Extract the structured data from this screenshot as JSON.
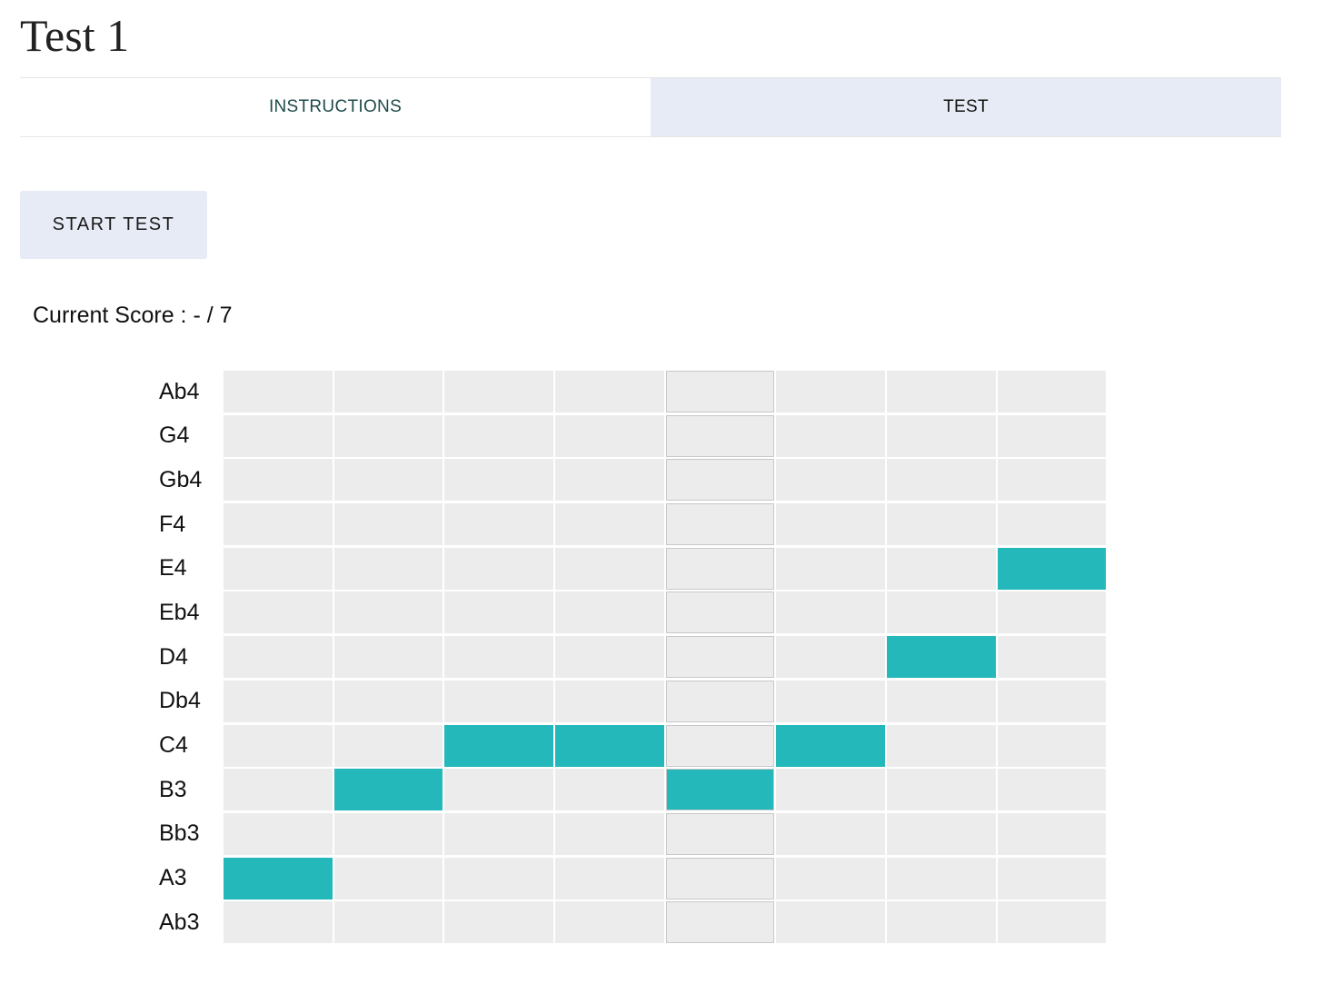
{
  "page": {
    "title": "Test 1"
  },
  "tabs": [
    {
      "label": "INSTRUCTIONS",
      "active": false
    },
    {
      "label": "TEST",
      "active": true
    }
  ],
  "start_button": {
    "label": "START TEST"
  },
  "score": {
    "label": "Current Score : - / 7"
  },
  "colors": {
    "note_active": "#24b8bb",
    "cell_empty": "#ececec",
    "tab_active_bg": "#e7ebf5"
  },
  "grid": {
    "columns": 8,
    "current_column": 4,
    "notes": [
      "Ab4",
      "G4",
      "Gb4",
      "F4",
      "E4",
      "Eb4",
      "D4",
      "Db4",
      "C4",
      "B3",
      "Bb3",
      "A3",
      "Ab3"
    ],
    "sequence": [
      "A3",
      "B3",
      "C4",
      "C4",
      "B3",
      "C4",
      "D4",
      "E4"
    ]
  }
}
